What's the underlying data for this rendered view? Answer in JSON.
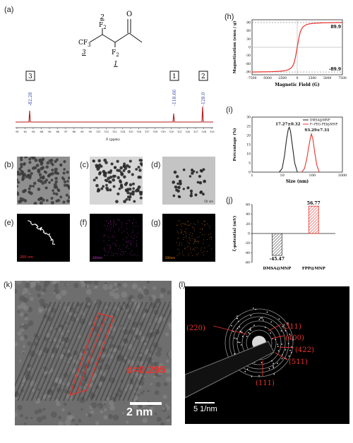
{
  "panels": {
    "a": {
      "label": "(a)",
      "structure": {
        "cf3": "CF",
        "cf3_sub": "3",
        "f2_top": "F",
        "f2_top_sub": "2",
        "f2_bottom": "F",
        "f2_bottom_sub": "2",
        "o": "O",
        "num_1": "1",
        "num_2": "2",
        "num_3": "3"
      },
      "nmr": {
        "peak_labels": [
          "3",
          "1",
          "2"
        ],
        "peak_values": [
          "-82.28",
          "-118.66",
          "-128.0"
        ],
        "x_ticks": [
          "-81",
          "-82",
          "-83",
          "-84",
          "-85",
          "-86",
          "-87",
          "-88",
          "-89",
          "-90",
          "-111",
          "-112",
          "-113",
          "-114",
          "-115",
          "-116",
          "-117",
          "-118",
          "-119",
          "-120",
          "-121",
          "-126",
          "-127",
          "-128",
          "-129"
        ],
        "x_label": "δ (ppm)",
        "line_color": "#b31b1b"
      }
    },
    "b": {
      "label": "(b)"
    },
    "c": {
      "label": "(c)"
    },
    "d": {
      "label": "(d)",
      "scale": "50 nm"
    },
    "e": {
      "label": "(e)",
      "scale": "200 nm"
    },
    "f": {
      "label": "(f)",
      "scale": "200nm"
    },
    "g": {
      "label": "(g)",
      "scale": "200nm"
    },
    "h": {
      "label": "(h)"
    },
    "i": {
      "label": "(i)"
    },
    "j": {
      "label": "(j)"
    },
    "k": {
      "label": "(k)",
      "annotation": "d=0.295",
      "scale": "2 nm"
    },
    "l": {
      "label": "(l)",
      "scale": "5 1/nm",
      "rings": [
        "(220)",
        "(311)",
        "(400)",
        "(422)",
        "(511)",
        "(111)"
      ]
    }
  },
  "chart_data": [
    {
      "panel": "h",
      "type": "line",
      "xlabel": "Magnetic Field (G)",
      "ylabel": "Magnetization (emu / g)",
      "x_ticks": [
        "-7500",
        "-5000",
        "-2500",
        "0",
        "2500",
        "5000",
        "7500"
      ],
      "y_ticks": [
        "-90",
        "-60",
        "-30",
        "0",
        "30",
        "60",
        "90"
      ],
      "xlim": [
        -7500,
        7500
      ],
      "ylim": [
        -100,
        100
      ],
      "annotations": [
        "89.9",
        "-89.9"
      ],
      "line_color": "#e8332b",
      "x": [
        -7500,
        -6000,
        -4500,
        -3000,
        -2000,
        -1500,
        -1000,
        -700,
        -500,
        -300,
        -150,
        0,
        150,
        300,
        500,
        700,
        1000,
        1500,
        2000,
        3000,
        4500,
        6000,
        7500
      ],
      "y": [
        -89.9,
        -89.6,
        -89.0,
        -87.5,
        -85,
        -82,
        -75,
        -66,
        -55,
        -37,
        -19,
        0,
        19,
        37,
        55,
        66,
        75,
        82,
        85,
        87.5,
        89.0,
        89.6,
        89.9
      ]
    },
    {
      "panel": "i",
      "type": "line",
      "xlabel": "Size (nm)",
      "ylabel": "Percentage (%)",
      "x_scale": "log",
      "x_ticks": [
        "1",
        "10",
        "100",
        "1000"
      ],
      "y_ticks": [
        "0",
        "5",
        "10",
        "15",
        "20",
        "25",
        "30"
      ],
      "xlim": [
        1,
        1000
      ],
      "ylim": [
        0,
        30
      ],
      "legend_position": "top-right",
      "annotations": [
        "17.27±0.32",
        "93.29±7.31"
      ],
      "series": [
        {
          "name": "DMSA@MNP",
          "color": "#222222",
          "x": [
            8,
            10,
            12,
            14,
            16,
            17.27,
            19,
            22,
            26,
            32
          ],
          "y": [
            0,
            2,
            9,
            18,
            23.5,
            24.5,
            22,
            14,
            5,
            0
          ]
        },
        {
          "name": "F₇-PEG-PEI@MNP",
          "color": "#e8332b",
          "x": [
            45,
            55,
            65,
            75,
            85,
            93.29,
            105,
            120,
            140,
            170
          ],
          "y": [
            0,
            2,
            7,
            13,
            18,
            20.8,
            18,
            11,
            4,
            0
          ]
        }
      ]
    },
    {
      "panel": "j",
      "type": "bar",
      "ylabel": "ζ-potential (mV)",
      "categories": [
        "DMSA@MNP",
        "FPP@MNP"
      ],
      "values": [
        -45.47,
        56.77
      ],
      "value_labels": [
        "-45.47",
        "56.77"
      ],
      "y_ticks": [
        "-60",
        "-40",
        "-20",
        "0",
        "20",
        "40",
        "60"
      ],
      "ylim": [
        -60,
        60
      ],
      "colors": [
        "#444444",
        "#e8332b"
      ]
    }
  ]
}
